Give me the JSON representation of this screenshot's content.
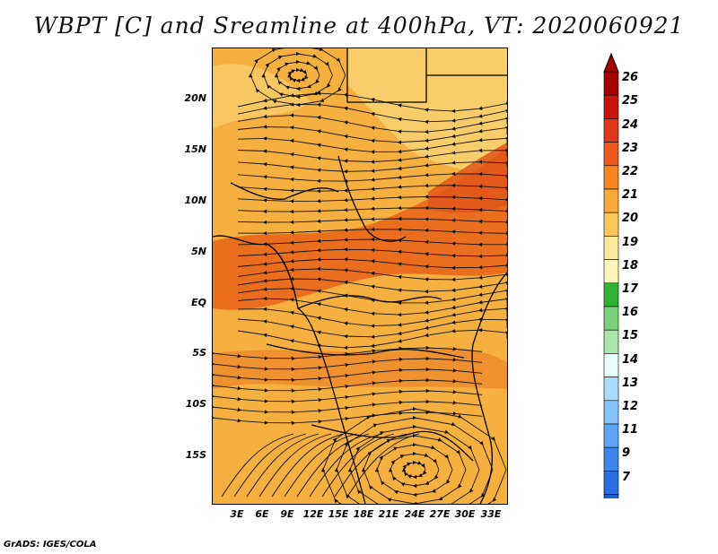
{
  "title": "WBPT [C] and Sreamline at 400hPa, VT: 2020060921",
  "credit": "GrADS: IGES/COLA",
  "map": {
    "lat_labels": [
      "20N",
      "15N",
      "10N",
      "5N",
      "EQ",
      "5S",
      "10S",
      "15S"
    ],
    "lon_labels": [
      "3E",
      "6E",
      "9E",
      "12E",
      "15E",
      "18E",
      "21E",
      "24E",
      "27E",
      "30E",
      "33E"
    ],
    "base_color": "#f5b040",
    "warm_band_color": "#ea6e1e",
    "cool_patch_color": "#f9cd6a"
  },
  "colorbar": {
    "labels": [
      "26",
      "25",
      "24",
      "23",
      "22",
      "21",
      "20",
      "19",
      "18",
      "17",
      "16",
      "15",
      "14",
      "13",
      "12",
      "11",
      "9",
      "7"
    ],
    "colors": [
      "#a50000",
      "#c8140a",
      "#e0361a",
      "#ee5a1e",
      "#f5861e",
      "#f9a83a",
      "#fbc75a",
      "#fde99a",
      "#fff5b8",
      "#32b432",
      "#7ad27a",
      "#aae6aa",
      "#e6fff8",
      "#aadcff",
      "#86c4ff",
      "#5aa5f5",
      "#3c87ec",
      "#2a6fe0",
      "#1e5fd8"
    ],
    "over_color": "#a50000",
    "under_color": "#1e5fd8"
  }
}
